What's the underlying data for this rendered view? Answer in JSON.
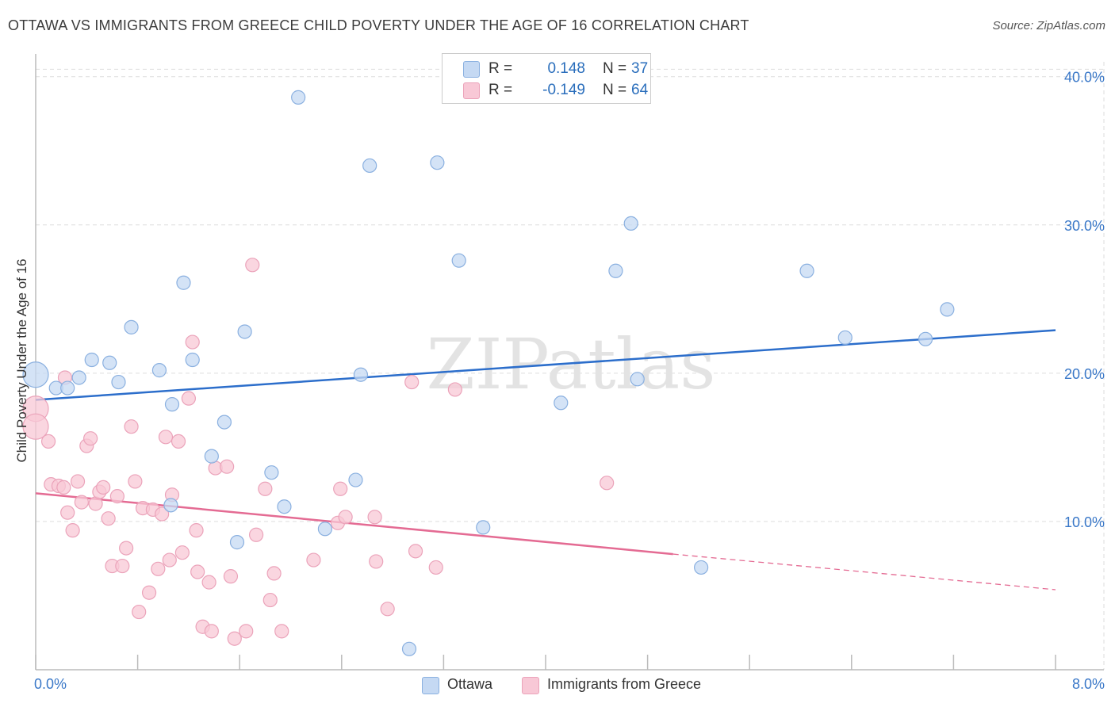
{
  "header": {
    "title": "OTTAWA VS IMMIGRANTS FROM GREECE CHILD POVERTY UNDER THE AGE OF 16 CORRELATION CHART",
    "source": "Source: ZipAtlas.com"
  },
  "watermark": "ZIPatlas",
  "legend": {
    "rows": [
      {
        "series": "Ottawa",
        "r_label": "R =",
        "r_value": "0.148",
        "n_label": "N =",
        "n_value": "37"
      },
      {
        "series": "Immigrants from Greece",
        "r_label": "R =",
        "r_value": "-0.149",
        "n_label": "N =",
        "n_value": "64"
      }
    ]
  },
  "colors": {
    "ottawa_fill": "#c5d9f3",
    "ottawa_stroke": "#8ab0e0",
    "ottawa_line": "#2c6ecb",
    "greece_fill": "#f8c8d6",
    "greece_stroke": "#eba3ba",
    "greece_line": "#e46b93",
    "axis_text": "#3a78c8",
    "grid": "#dddddd"
  },
  "chart_data": {
    "type": "scatter",
    "title": "OTTAWA VS IMMIGRANTS FROM GREECE CHILD POVERTY UNDER THE AGE OF 16 CORRELATION CHART",
    "xlabel": "",
    "ylabel": "Child Poverty Under the Age of 16",
    "xlim": [
      0,
      8
    ],
    "ylim": [
      0,
      41
    ],
    "x_tick_labels": [
      "0.0%",
      "8.0%"
    ],
    "y_ticks": [
      10,
      20,
      30,
      40
    ],
    "y_tick_labels": [
      "10.0%",
      "20.0%",
      "30.0%",
      "40.0%"
    ],
    "legend_position": "top-center",
    "series": [
      {
        "name": "Ottawa",
        "r": 0.148,
        "n": 37,
        "trend": {
          "x0": 0,
          "y0": 18.2,
          "x1": 8,
          "y1": 22.9
        },
        "points": [
          {
            "x": 0.0,
            "y": 19.9,
            "big": true
          },
          {
            "x": 0.16,
            "y": 19.0
          },
          {
            "x": 0.25,
            "y": 19.0
          },
          {
            "x": 0.34,
            "y": 19.7
          },
          {
            "x": 0.44,
            "y": 20.9
          },
          {
            "x": 0.58,
            "y": 20.7
          },
          {
            "x": 0.65,
            "y": 19.4
          },
          {
            "x": 0.75,
            "y": 23.1
          },
          {
            "x": 0.97,
            "y": 20.2
          },
          {
            "x": 1.07,
            "y": 17.9
          },
          {
            "x": 1.16,
            "y": 26.1
          },
          {
            "x": 1.23,
            "y": 20.9
          },
          {
            "x": 1.38,
            "y": 14.4
          },
          {
            "x": 1.48,
            "y": 16.7
          },
          {
            "x": 1.58,
            "y": 8.6
          },
          {
            "x": 1.64,
            "y": 22.8
          },
          {
            "x": 1.85,
            "y": 13.3
          },
          {
            "x": 1.95,
            "y": 11.0
          },
          {
            "x": 2.06,
            "y": 38.6
          },
          {
            "x": 2.27,
            "y": 9.5
          },
          {
            "x": 2.51,
            "y": 12.8
          },
          {
            "x": 2.55,
            "y": 19.9
          },
          {
            "x": 2.62,
            "y": 34.0
          },
          {
            "x": 2.93,
            "y": 1.4
          },
          {
            "x": 3.15,
            "y": 34.2
          },
          {
            "x": 3.32,
            "y": 27.6
          },
          {
            "x": 3.51,
            "y": 9.6
          },
          {
            "x": 4.12,
            "y": 18.0
          },
          {
            "x": 4.55,
            "y": 26.9
          },
          {
            "x": 4.67,
            "y": 30.1
          },
          {
            "x": 4.72,
            "y": 19.6
          },
          {
            "x": 5.22,
            "y": 6.9
          },
          {
            "x": 6.05,
            "y": 26.9
          },
          {
            "x": 6.35,
            "y": 22.4
          },
          {
            "x": 6.98,
            "y": 22.3
          },
          {
            "x": 7.15,
            "y": 24.3
          },
          {
            "x": 1.06,
            "y": 11.1
          }
        ]
      },
      {
        "name": "Immigrants from Greece",
        "r": -0.149,
        "n": 64,
        "trend": {
          "x0": 0,
          "y0": 11.9,
          "x1": 5.0,
          "y1": 7.8,
          "dash_x1": 8,
          "dash_y1": 5.4
        },
        "points": [
          {
            "x": 0.0,
            "y": 17.6,
            "big": true
          },
          {
            "x": 0.0,
            "y": 16.4,
            "big": true
          },
          {
            "x": 0.1,
            "y": 15.4
          },
          {
            "x": 0.12,
            "y": 12.5
          },
          {
            "x": 0.18,
            "y": 12.4
          },
          {
            "x": 0.22,
            "y": 12.3
          },
          {
            "x": 0.23,
            "y": 19.7
          },
          {
            "x": 0.25,
            "y": 10.6
          },
          {
            "x": 0.29,
            "y": 9.4
          },
          {
            "x": 0.33,
            "y": 12.7
          },
          {
            "x": 0.36,
            "y": 11.3
          },
          {
            "x": 0.4,
            "y": 15.1
          },
          {
            "x": 0.43,
            "y": 15.6
          },
          {
            "x": 0.47,
            "y": 11.2
          },
          {
            "x": 0.5,
            "y": 12.0
          },
          {
            "x": 0.53,
            "y": 12.3
          },
          {
            "x": 0.57,
            "y": 10.2
          },
          {
            "x": 0.6,
            "y": 7.0
          },
          {
            "x": 0.64,
            "y": 11.7
          },
          {
            "x": 0.68,
            "y": 7.0
          },
          {
            "x": 0.71,
            "y": 8.2
          },
          {
            "x": 0.75,
            "y": 16.4
          },
          {
            "x": 0.78,
            "y": 12.7
          },
          {
            "x": 0.81,
            "y": 3.9
          },
          {
            "x": 0.84,
            "y": 10.9
          },
          {
            "x": 0.89,
            "y": 5.2
          },
          {
            "x": 0.92,
            "y": 10.8
          },
          {
            "x": 0.96,
            "y": 6.8
          },
          {
            "x": 0.99,
            "y": 10.5
          },
          {
            "x": 1.02,
            "y": 15.7
          },
          {
            "x": 1.05,
            "y": 7.4
          },
          {
            "x": 1.07,
            "y": 11.8
          },
          {
            "x": 1.12,
            "y": 15.4
          },
          {
            "x": 1.15,
            "y": 7.9
          },
          {
            "x": 1.2,
            "y": 18.3
          },
          {
            "x": 1.23,
            "y": 22.1
          },
          {
            "x": 1.26,
            "y": 9.4
          },
          {
            "x": 1.27,
            "y": 6.6
          },
          {
            "x": 1.31,
            "y": 2.9
          },
          {
            "x": 1.36,
            "y": 5.9
          },
          {
            "x": 1.38,
            "y": 2.6
          },
          {
            "x": 1.41,
            "y": 13.6
          },
          {
            "x": 1.5,
            "y": 13.7
          },
          {
            "x": 1.53,
            "y": 6.3
          },
          {
            "x": 1.56,
            "y": 2.1
          },
          {
            "x": 1.65,
            "y": 2.6
          },
          {
            "x": 1.7,
            "y": 27.3
          },
          {
            "x": 1.73,
            "y": 9.1
          },
          {
            "x": 1.8,
            "y": 12.2
          },
          {
            "x": 1.84,
            "y": 4.7
          },
          {
            "x": 1.87,
            "y": 6.5
          },
          {
            "x": 1.93,
            "y": 2.6
          },
          {
            "x": 2.18,
            "y": 7.4
          },
          {
            "x": 2.37,
            "y": 9.9
          },
          {
            "x": 2.39,
            "y": 12.2
          },
          {
            "x": 2.43,
            "y": 10.3
          },
          {
            "x": 2.66,
            "y": 10.3
          },
          {
            "x": 2.67,
            "y": 7.3
          },
          {
            "x": 2.76,
            "y": 4.1
          },
          {
            "x": 2.95,
            "y": 19.4
          },
          {
            "x": 2.98,
            "y": 8.0
          },
          {
            "x": 3.14,
            "y": 6.9
          },
          {
            "x": 3.29,
            "y": 18.9
          },
          {
            "x": 4.48,
            "y": 12.6
          }
        ]
      }
    ]
  }
}
